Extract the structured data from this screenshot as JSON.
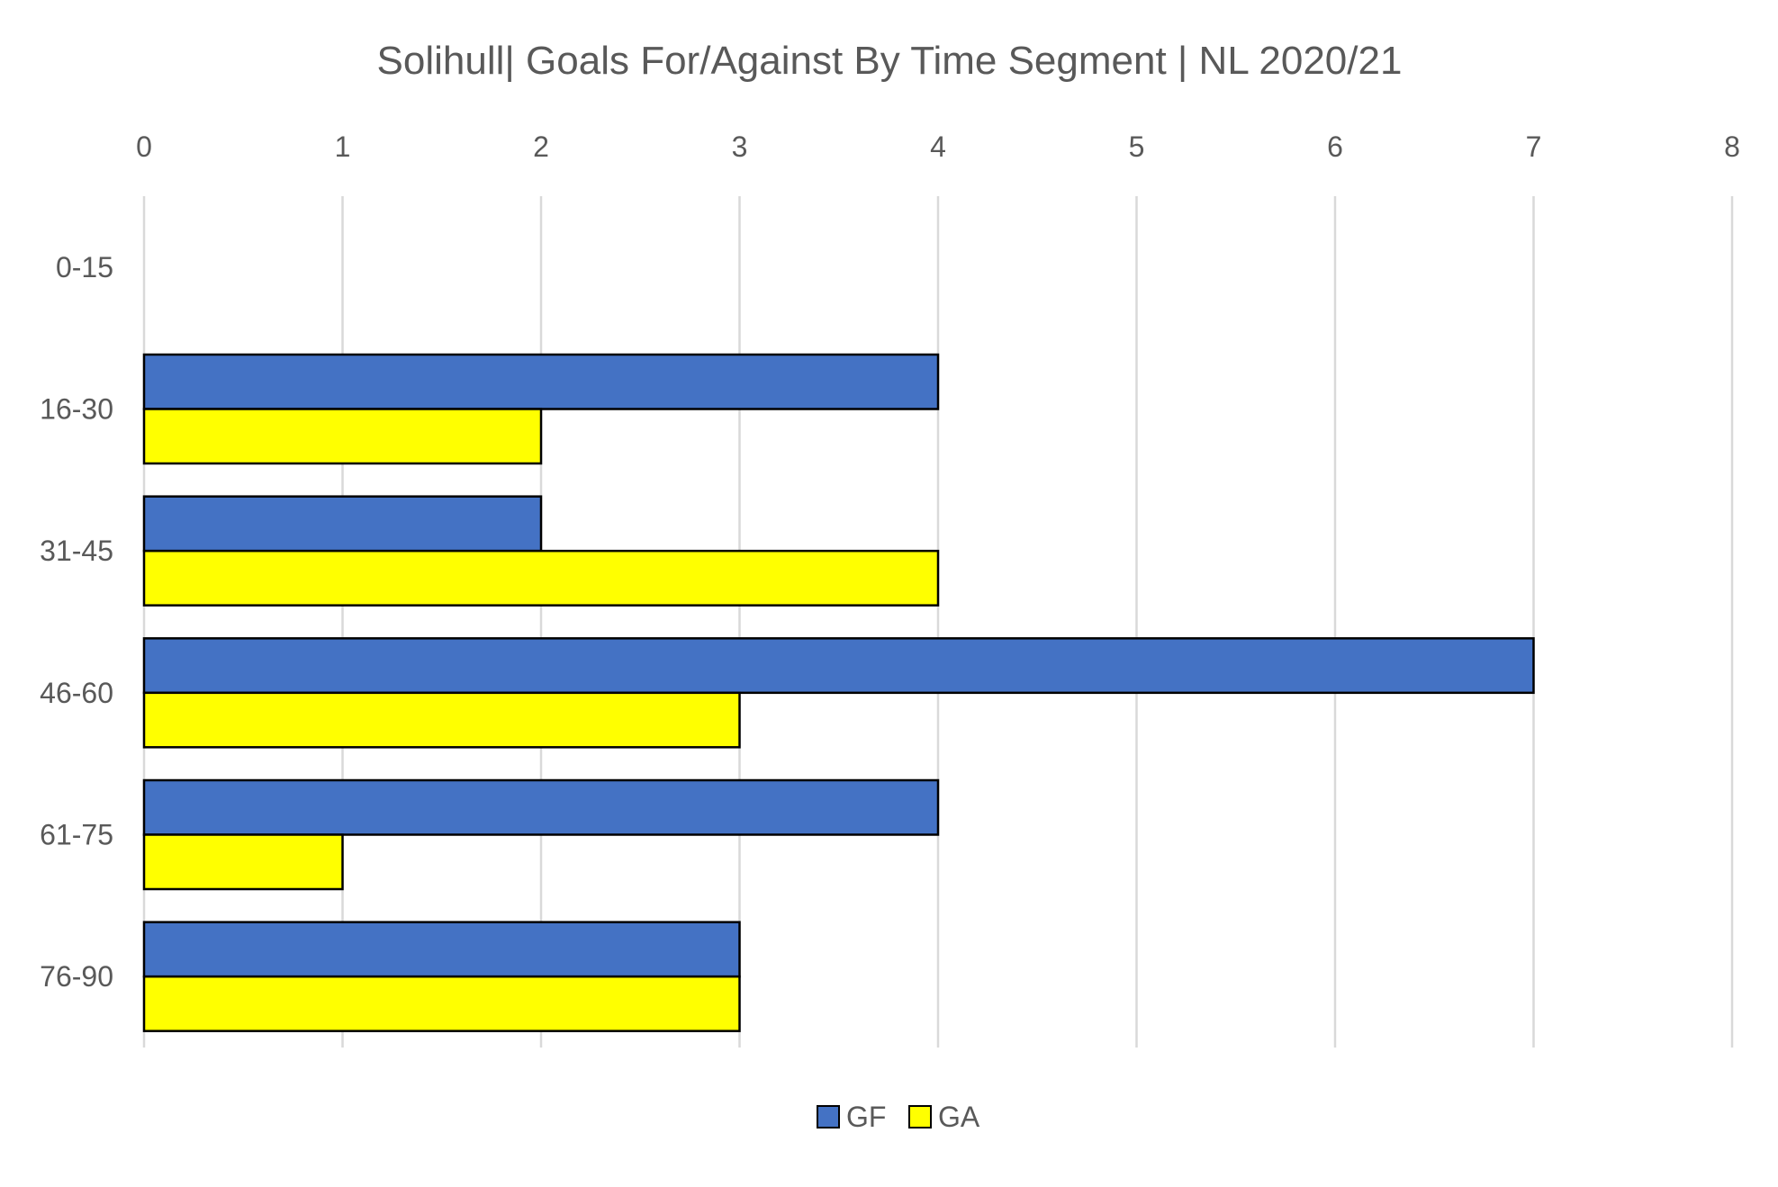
{
  "chart_data": {
    "type": "bar",
    "orientation": "horizontal",
    "title": "Solihull| Goals For/Against By Time Segment | NL 2020/21",
    "xlabel": "",
    "ylabel": "",
    "categories": [
      "0-15",
      "16-30",
      "31-45",
      "46-60",
      "61-75",
      "76-90"
    ],
    "series": [
      {
        "name": "GF",
        "values": [
          0,
          4,
          2,
          7,
          4,
          3
        ],
        "color": "#4472C4"
      },
      {
        "name": "GA",
        "values": [
          0,
          2,
          4,
          3,
          1,
          3
        ],
        "color": "#FFFF00"
      }
    ],
    "xlim": [
      0,
      8
    ],
    "xticks": [
      "0",
      "1",
      "2",
      "3",
      "4",
      "5",
      "6",
      "7",
      "8"
    ],
    "x_axis_position": "top",
    "grid": true,
    "legend": "bottom-center"
  }
}
